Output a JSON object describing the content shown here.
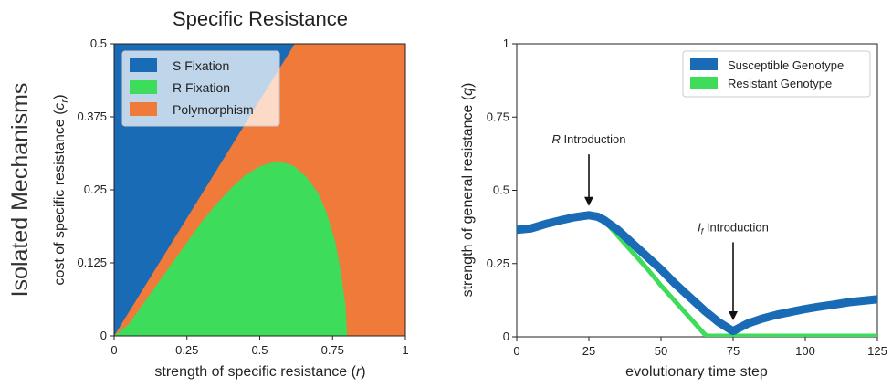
{
  "figure": {
    "row_label": "Isolated Mechanisms"
  },
  "chart_data": [
    {
      "type": "area",
      "title": "Specific Resistance",
      "xlabel": "strength of specific resistance (r)",
      "ylabel": "cost of specific resistance (c_r)",
      "xlabel_main": "strength of specific resistance (",
      "xlabel_var": "r",
      "xlabel_close": ")",
      "ylabel_main": "cost of specific resistance (",
      "ylabel_var": "c",
      "ylabel_sub": "r",
      "ylabel_close": ")",
      "xlim": [
        0,
        1
      ],
      "ylim": [
        0,
        0.5
      ],
      "x_ticks": [
        0,
        0.25,
        0.5,
        0.75,
        1
      ],
      "x_tick_labels": [
        "0",
        "0.25",
        "0.5",
        "0.75",
        "1"
      ],
      "y_ticks": [
        0,
        0.125,
        0.25,
        0.375,
        0.5
      ],
      "y_tick_labels": [
        "0",
        "0.125",
        "0.25",
        "0.375",
        "0.5"
      ],
      "background_region": "Polymorphism",
      "regions": [
        {
          "name": "S Fixation",
          "color": "#1a6bb5",
          "boundary": [
            [
              0,
              0
            ],
            [
              0.62,
              0.5
            ],
            [
              0,
              0.5
            ]
          ]
        },
        {
          "name": "R Fixation",
          "color": "#3ddc5a",
          "boundary": [
            [
              0,
              0
            ],
            [
              0.05,
              0.02
            ],
            [
              0.1,
              0.055
            ],
            [
              0.15,
              0.09
            ],
            [
              0.2,
              0.125
            ],
            [
              0.25,
              0.16
            ],
            [
              0.3,
              0.195
            ],
            [
              0.35,
              0.225
            ],
            [
              0.4,
              0.252
            ],
            [
              0.45,
              0.275
            ],
            [
              0.5,
              0.29
            ],
            [
              0.55,
              0.298
            ],
            [
              0.58,
              0.297
            ],
            [
              0.62,
              0.29
            ],
            [
              0.66,
              0.272
            ],
            [
              0.7,
              0.245
            ],
            [
              0.73,
              0.21
            ],
            [
              0.76,
              0.16
            ],
            [
              0.78,
              0.105
            ],
            [
              0.795,
              0.05
            ],
            [
              0.8,
              0
            ]
          ]
        },
        {
          "name": "Polymorphism",
          "color": "#f07a3a"
        }
      ],
      "legend": {
        "placement": "top-left",
        "items": [
          "S Fixation",
          "R Fixation",
          "Polymorphism"
        ]
      }
    },
    {
      "type": "line",
      "title": "",
      "xlabel": "evolutionary time step",
      "ylabel": "strength of general resistance (q)",
      "ylabel_main": "strength of general resistance (",
      "ylabel_var": "q",
      "ylabel_close": ")",
      "xlim": [
        0,
        125
      ],
      "ylim": [
        0,
        1
      ],
      "x_ticks": [
        0,
        25,
        50,
        75,
        100,
        125
      ],
      "x_tick_labels": [
        "0",
        "25",
        "50",
        "75",
        "100",
        "125"
      ],
      "y_ticks": [
        0,
        0.25,
        0.5,
        0.75,
        1
      ],
      "y_tick_labels": [
        "0",
        "0.25",
        "0.5",
        "0.75",
        "1"
      ],
      "grid": false,
      "series": [
        {
          "name": "Susceptible Genotype",
          "color": "#1a6bb5",
          "x": [
            0,
            5,
            10,
            15,
            20,
            25,
            28,
            30,
            35,
            40,
            45,
            50,
            55,
            60,
            65,
            70,
            74,
            75,
            80,
            85,
            90,
            95,
            100,
            105,
            110,
            115,
            120,
            125
          ],
          "y": [
            0.365,
            0.37,
            0.385,
            0.397,
            0.408,
            0.415,
            0.41,
            0.4,
            0.365,
            0.32,
            0.275,
            0.23,
            0.18,
            0.135,
            0.09,
            0.05,
            0.025,
            0.02,
            0.045,
            0.062,
            0.075,
            0.085,
            0.095,
            0.103,
            0.11,
            0.118,
            0.123,
            0.128
          ]
        },
        {
          "name": "Resistant Genotype",
          "color": "#3ddc5a",
          "x": [
            30,
            35,
            40,
            45,
            50,
            55,
            60,
            65,
            66,
            70,
            75,
            80,
            90,
            100,
            110,
            125
          ],
          "y": [
            0.4,
            0.345,
            0.29,
            0.235,
            0.175,
            0.12,
            0.065,
            0.01,
            0.003,
            0.003,
            0.003,
            0.003,
            0.003,
            0.003,
            0.003,
            0.003
          ]
        }
      ],
      "legend": {
        "placement": "top-right",
        "items": [
          "Susceptible Genotype",
          "Resistant Genotype"
        ]
      },
      "annotations": [
        {
          "label_var": "R",
          "label_rest": " Introduction",
          "x": 25,
          "y": 0.415,
          "text_y": 0.66
        },
        {
          "label_var": "I",
          "label_sub": "f",
          "label_rest": " Introduction",
          "x": 75,
          "y": 0.025,
          "text_y": 0.36
        }
      ]
    }
  ]
}
